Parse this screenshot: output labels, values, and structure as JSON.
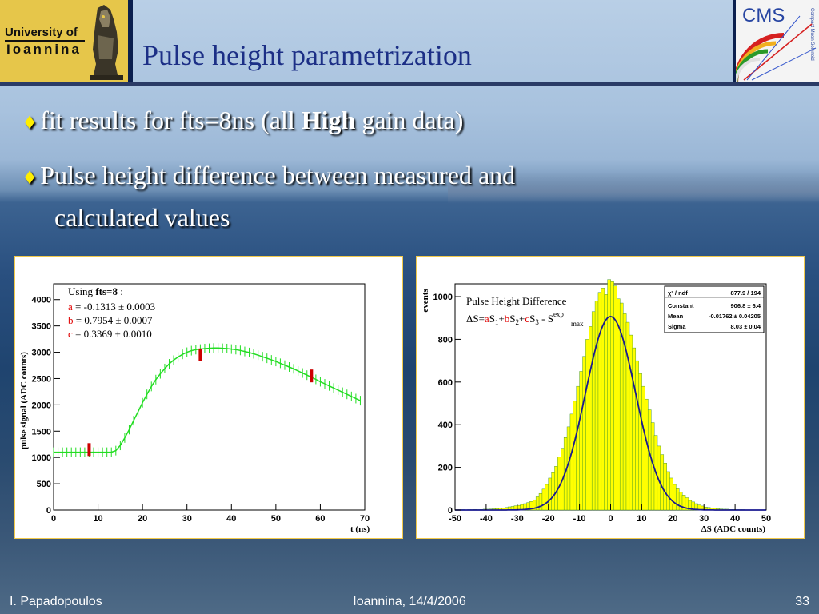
{
  "slide": {
    "title": "Pulse height parametrization",
    "logo_left": {
      "line1": "University of",
      "line2": "Ioannina"
    },
    "logo_right": {
      "text": "CMS",
      "side": "Compact Muon Solenoid"
    },
    "bullets": [
      {
        "pre": "fit results for fts=8ns (all ",
        "bold": "High",
        "post": " gain data)"
      },
      {
        "line1": "Pulse height difference between measured and",
        "line2": "calculated values"
      }
    ],
    "footer": {
      "author": "I. Papadopoulos",
      "place_date": "Ioannina, 14/4/2006",
      "page": "33"
    }
  },
  "chart_data": [
    {
      "type": "line",
      "title": "",
      "xlabel": "t (ns)",
      "ylabel": "pulse signal (ADC counts)",
      "xlim": [
        0,
        70
      ],
      "ylim": [
        0,
        4300
      ],
      "xticks": [
        0,
        10,
        20,
        30,
        40,
        50,
        60,
        70
      ],
      "yticks": [
        0,
        500,
        1000,
        1500,
        2000,
        2500,
        3000,
        3500,
        4000
      ],
      "legend": {
        "using": "Using ",
        "using_bold": "fts=8",
        "using_post": " :",
        "params": [
          {
            "name": "a",
            "value": " = -0.1313 ± 0.0003",
            "color": "#e00000"
          },
          {
            "name": "b",
            "value": " =  0.7954 ± 0.0007",
            "color": "#e00000"
          },
          {
            "name": "c",
            "value": " =  0.3369 ±  0.0010",
            "color": "#e00000"
          }
        ]
      },
      "series": [
        {
          "x": [
            0,
            1,
            2,
            3,
            4,
            5,
            6,
            7,
            8,
            9,
            10,
            11,
            12,
            13,
            14,
            15,
            16,
            17,
            18,
            19,
            20,
            21,
            22,
            23,
            24,
            25,
            26,
            27,
            28,
            29,
            30,
            31,
            32,
            33,
            34,
            35,
            36,
            37,
            38,
            39,
            40,
            41,
            42,
            43,
            44,
            45,
            46,
            47,
            48,
            49,
            50,
            51,
            52,
            53,
            54,
            55,
            56,
            57,
            58,
            59,
            60,
            61,
            62,
            63,
            64,
            65,
            66,
            67,
            68,
            69
          ],
          "y": [
            1100,
            1100,
            1100,
            1100,
            1100,
            1100,
            1100,
            1100,
            1100,
            1100,
            1100,
            1100,
            1100,
            1100,
            1130,
            1230,
            1370,
            1530,
            1700,
            1870,
            2040,
            2200,
            2350,
            2480,
            2590,
            2690,
            2780,
            2850,
            2910,
            2960,
            3000,
            3030,
            3050,
            3060,
            3070,
            3075,
            3080,
            3080,
            3075,
            3070,
            3060,
            3050,
            3035,
            3015,
            2995,
            2970,
            2945,
            2915,
            2885,
            2855,
            2825,
            2790,
            2755,
            2720,
            2685,
            2645,
            2605,
            2565,
            2525,
            2485,
            2440,
            2400,
            2360,
            2320,
            2280,
            2240,
            2200,
            2160,
            2120,
            2080
          ],
          "color": "#22dd22"
        }
      ],
      "markers": [
        {
          "x": 8,
          "y": 1150,
          "color": "#cc0000"
        },
        {
          "x": 33,
          "y": 2950,
          "color": "#cc0000"
        },
        {
          "x": 58,
          "y": 2550,
          "color": "#cc0000"
        }
      ]
    },
    {
      "type": "bar",
      "title": "Pulse Height Difference",
      "formula": {
        "lhs": "ΔS=",
        "a": "a",
        "s1": "S",
        "sub1": "1",
        "plus1": "+",
        "b": "b",
        "s2": "S",
        "sub2": "2",
        "plus2": "+",
        "c": "c",
        "s3": "S",
        "sub3": "3",
        "minus": " - S",
        "sup": "exp",
        "sub_max": "max"
      },
      "xlabel": "ΔS (ADC counts)",
      "ylabel": "events",
      "xlim": [
        -50,
        50
      ],
      "ylim": [
        0,
        1060
      ],
      "xticks": [
        -50,
        -40,
        -30,
        -20,
        -10,
        0,
        10,
        20,
        30,
        40,
        50
      ],
      "yticks": [
        0,
        200,
        400,
        600,
        800,
        1000
      ],
      "bar_color": "#ffff00",
      "fit_color": "#1a1a90",
      "fit": {
        "constant": 906.8,
        "mean": -0.01762,
        "sigma": 8.03
      },
      "bin_width": 1,
      "bins_x": [
        -50,
        -49,
        -48,
        -47,
        -46,
        -45,
        -44,
        -43,
        -42,
        -41,
        -40,
        -39,
        -38,
        -37,
        -36,
        -35,
        -34,
        -33,
        -32,
        -31,
        -30,
        -29,
        -28,
        -27,
        -26,
        -25,
        -24,
        -23,
        -22,
        -21,
        -20,
        -19,
        -18,
        -17,
        -16,
        -15,
        -14,
        -13,
        -12,
        -11,
        -10,
        -9,
        -8,
        -7,
        -6,
        -5,
        -4,
        -3,
        -2,
        -1,
        0,
        1,
        2,
        3,
        4,
        5,
        6,
        7,
        8,
        9,
        10,
        11,
        12,
        13,
        14,
        15,
        16,
        17,
        18,
        19,
        20,
        21,
        22,
        23,
        24,
        25,
        26,
        27,
        28,
        29,
        30,
        31,
        32,
        33,
        34,
        35,
        36,
        37,
        38,
        39,
        40,
        41,
        42,
        43,
        44,
        45,
        46,
        47,
        48,
        49
      ],
      "bins_y": [
        1,
        1,
        2,
        1,
        2,
        2,
        3,
        2,
        3,
        4,
        4,
        5,
        6,
        7,
        9,
        10,
        12,
        15,
        17,
        20,
        22,
        26,
        30,
        35,
        40,
        48,
        62,
        78,
        98,
        120,
        150,
        175,
        205,
        250,
        290,
        340,
        390,
        450,
        510,
        580,
        650,
        720,
        800,
        860,
        930,
        980,
        1020,
        1040,
        1010,
        1080,
        1070,
        1050,
        990,
        970,
        920,
        880,
        820,
        760,
        700,
        640,
        580,
        520,
        470,
        410,
        350,
        300,
        260,
        220,
        180,
        150,
        120,
        100,
        85,
        70,
        58,
        45,
        38,
        30,
        24,
        19,
        14,
        12,
        10,
        8,
        6,
        5,
        4,
        4,
        3,
        3,
        2,
        2,
        2,
        1,
        1,
        1,
        1,
        1,
        1,
        1
      ],
      "stats": [
        {
          "label": "χ² / ndf",
          "value": "877.9 / 194"
        },
        {
          "label": "Constant",
          "value": "906.8 ± 6.4"
        },
        {
          "label": "Mean",
          "value": "-0.01762 ± 0.04205"
        },
        {
          "label": "Sigma",
          "value": "8.03 ± 0.04"
        }
      ]
    }
  ]
}
